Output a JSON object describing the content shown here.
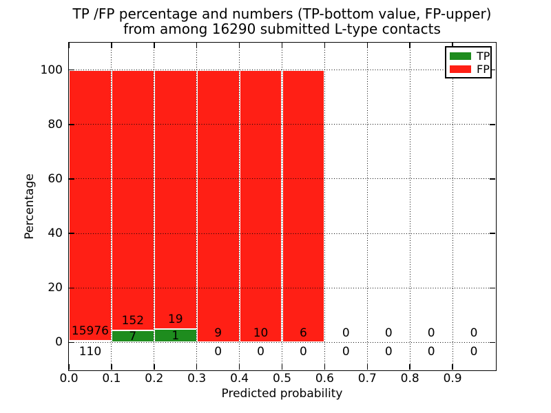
{
  "chart_data": {
    "type": "bar",
    "stacked": true,
    "title_lines": [
      "TP /FP percentage and numbers (TP-bottom value, FP-upper)",
      "from among 16290 submitted L-type contacts"
    ],
    "xlabel": "Predicted probability",
    "ylabel": "Percentage",
    "xlim": [
      0.0,
      1.0
    ],
    "ylim": [
      -10,
      110
    ],
    "xticks": [
      "0.0",
      "0.1",
      "0.2",
      "0.3",
      "0.4",
      "0.5",
      "0.6",
      "0.7",
      "0.8",
      "0.9"
    ],
    "yticks": [
      0,
      20,
      40,
      60,
      80,
      100
    ],
    "grid": "dotted-black-over-bars",
    "bin_edges": [
      0.0,
      0.1,
      0.2,
      0.3,
      0.4,
      0.5,
      0.6,
      0.7,
      0.8,
      0.9,
      1.0
    ],
    "series": [
      {
        "name": "TP",
        "color": "#1e8c1e",
        "counts": [
          110,
          7,
          1,
          0,
          0,
          0,
          0,
          0,
          0,
          0
        ]
      },
      {
        "name": "FP",
        "color": "#ff1f15",
        "counts": [
          15976,
          152,
          19,
          9,
          10,
          6,
          0,
          0,
          0,
          0
        ]
      }
    ],
    "bars_reach_percent": 100,
    "legend": {
      "position": "upper right"
    }
  }
}
